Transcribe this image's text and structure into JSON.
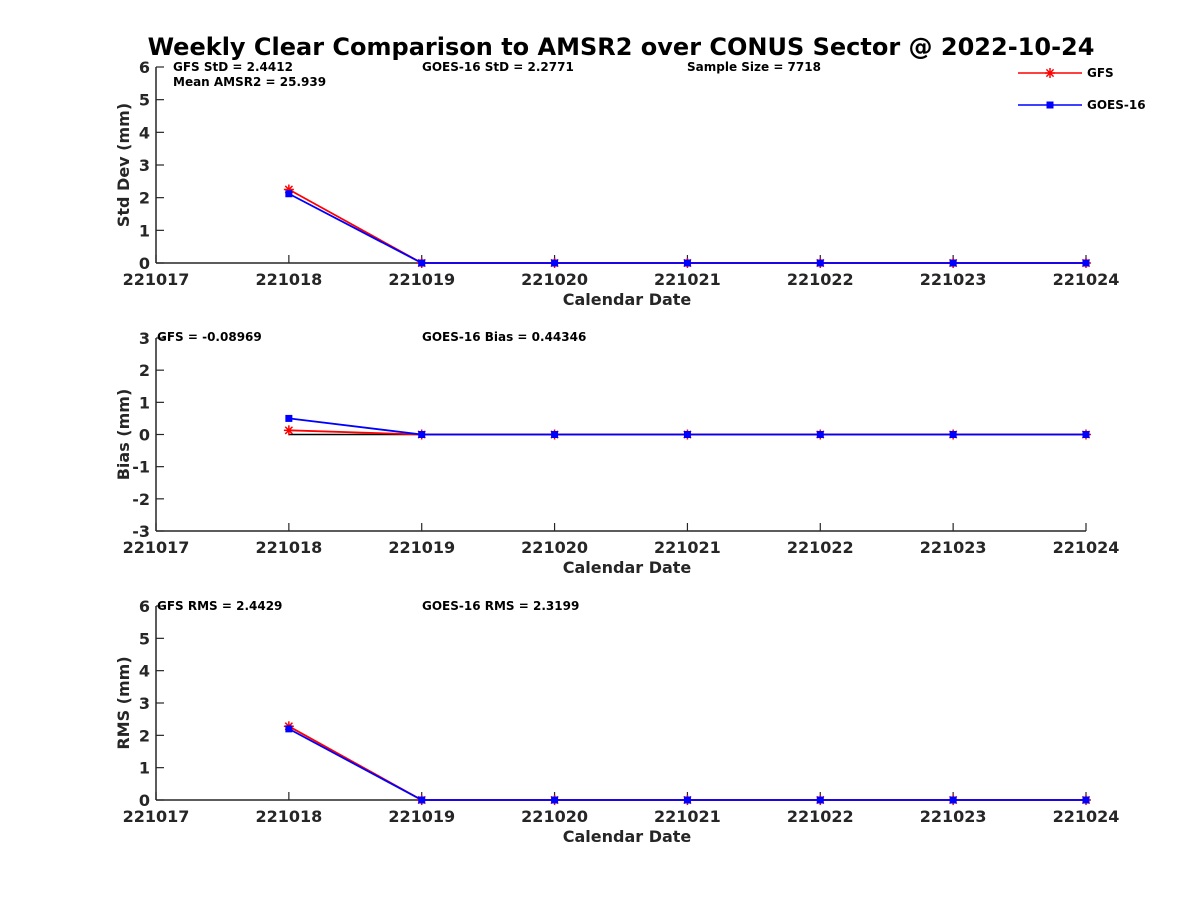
{
  "title": "Weekly Clear Comparison to AMSR2 over CONUS Sector @ 2022-10-24",
  "legend": {
    "placement": "top-right",
    "items": [
      {
        "name": "GFS",
        "color": "#ff0000",
        "marker": "asterisk"
      },
      {
        "name": "GOES-16",
        "color": "#0000ff",
        "marker": "square"
      }
    ]
  },
  "chart_data": [
    {
      "type": "line",
      "ylabel": "Std Dev (mm)",
      "xlabel": "Calendar Date",
      "categories": [
        "221017",
        "221018",
        "221019",
        "221020",
        "221021",
        "221022",
        "221023",
        "221024"
      ],
      "ylim": [
        0,
        6
      ],
      "yticks": [
        "0",
        "1",
        "2",
        "3",
        "4",
        "5",
        "6"
      ],
      "annotations": [
        "GFS StD = 2.4412",
        "GOES-16 StD = 2.2771",
        "Sample Size = 7718",
        "Mean AMSR2 = 25.939"
      ],
      "series": [
        {
          "name": "GFS",
          "color": "#ff0000",
          "values": [
            null,
            2.25,
            0,
            0,
            0,
            0,
            0,
            0
          ]
        },
        {
          "name": "GOES-16",
          "color": "#0000ff",
          "values": [
            null,
            2.12,
            0,
            0,
            0,
            0,
            0,
            0
          ]
        }
      ]
    },
    {
      "type": "line",
      "ylabel": "Bias (mm)",
      "xlabel": "Calendar Date",
      "categories": [
        "221017",
        "221018",
        "221019",
        "221020",
        "221021",
        "221022",
        "221023",
        "221024"
      ],
      "ylim": [
        -3,
        3
      ],
      "yticks": [
        "-3",
        "-2",
        "-1",
        "0",
        "1",
        "2",
        "3"
      ],
      "zero_line": {
        "from": "221018",
        "to": "221024",
        "color": "#000000"
      },
      "annotations": [
        "GFS = -0.08969",
        "GOES-16 Bias  = 0.44346"
      ],
      "series": [
        {
          "name": "GFS",
          "color": "#ff0000",
          "values": [
            null,
            0.13,
            0,
            0,
            0,
            0,
            0,
            0
          ]
        },
        {
          "name": "GOES-16",
          "color": "#0000ff",
          "values": [
            null,
            0.5,
            0,
            0,
            0,
            0,
            0,
            0
          ]
        }
      ]
    },
    {
      "type": "line",
      "ylabel": "RMS (mm)",
      "xlabel": "Calendar Date",
      "categories": [
        "221017",
        "221018",
        "221019",
        "221020",
        "221021",
        "221022",
        "221023",
        "221024"
      ],
      "ylim": [
        0,
        6
      ],
      "yticks": [
        "0",
        "1",
        "2",
        "3",
        "4",
        "5",
        "6"
      ],
      "annotations": [
        "GFS RMS = 2.4429",
        "GOES-16 RMS = 2.3199"
      ],
      "series": [
        {
          "name": "GFS",
          "color": "#ff0000",
          "values": [
            null,
            2.28,
            0,
            0,
            0,
            0,
            0,
            0
          ]
        },
        {
          "name": "GOES-16",
          "color": "#0000ff",
          "values": [
            null,
            2.2,
            0,
            0,
            0,
            0,
            0,
            0
          ]
        }
      ]
    }
  ]
}
